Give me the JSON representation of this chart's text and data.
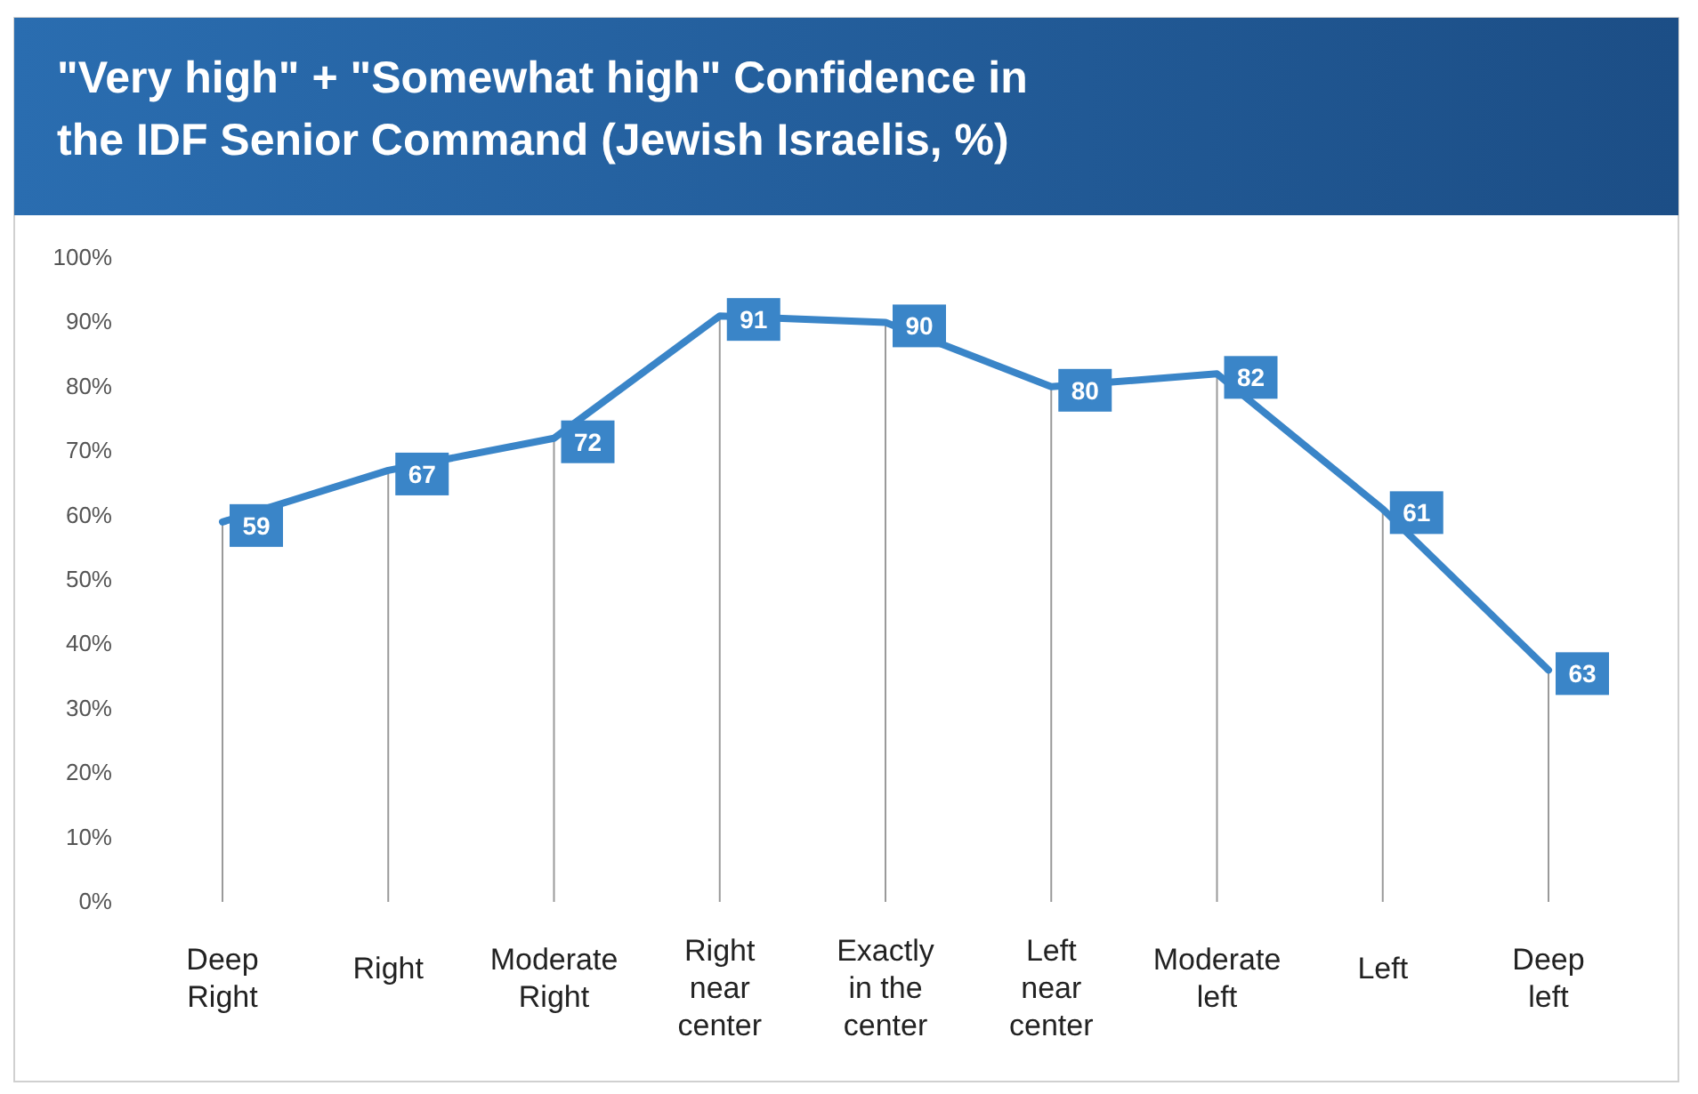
{
  "chart_data": {
    "type": "line",
    "title": "\"Very high\" + \"Somewhat high\" Confidence in the IDF Senior Command (Jewish Israelis, %)",
    "categories": [
      "Deep Right",
      "Right",
      "Moderate Right",
      "Right near center",
      "Exactly in the center",
      "Left near center",
      "Moderate left",
      "Left",
      "Deep left"
    ],
    "series": [
      {
        "color": "#3a85c8",
        "values": [
          59,
          67,
          72,
          91,
          90,
          80,
          82,
          61,
          36
        ]
      }
    ],
    "value_labels": [
      "59",
      "67",
      "72",
      "91",
      "90",
      "80",
      "82",
      "61",
      "63"
    ],
    "ylim": [
      0,
      100
    ],
    "yticks": [
      {
        "value": 0,
        "label": "0%"
      },
      {
        "value": 10,
        "label": "10%"
      },
      {
        "value": 20,
        "label": "20%"
      },
      {
        "value": 30,
        "label": "30%"
      },
      {
        "value": 40,
        "label": "40%"
      },
      {
        "value": 50,
        "label": "50%"
      },
      {
        "value": 60,
        "label": "60%"
      },
      {
        "value": 70,
        "label": "70%"
      },
      {
        "value": 80,
        "label": "80%"
      },
      {
        "value": 90,
        "label": "90%"
      },
      {
        "value": 100,
        "label": "100%"
      }
    ],
    "grid": "x",
    "marker": "none",
    "line_style": "solid"
  }
}
